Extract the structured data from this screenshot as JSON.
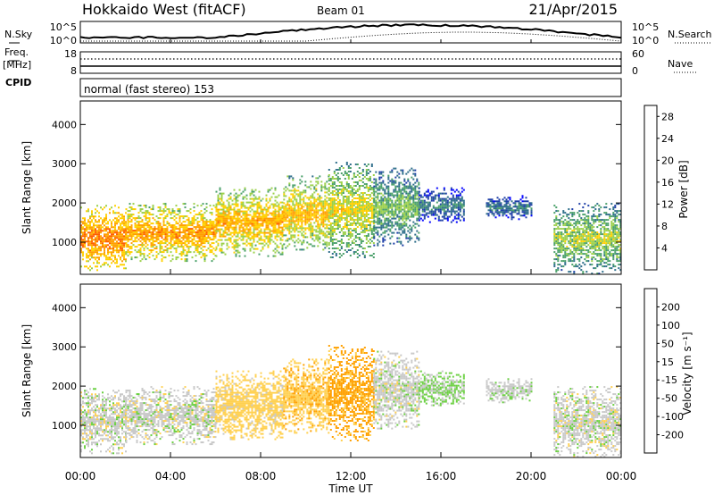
{
  "header": {
    "station": "Hokkaido West (fitACF)",
    "beam": "Beam 01",
    "date": "21/Apr/2015"
  },
  "noise_panel": {
    "left_label": "N.Sky",
    "right_label": "N.Search",
    "ticks_left": [
      "10^5",
      "10^0"
    ],
    "ticks_right": [
      "10^5",
      "10^0"
    ]
  },
  "freq_panel": {
    "left_label_1": "Freq.",
    "left_label_2": "[MHz]",
    "right_label": "Nave",
    "ticks_left": [
      "18",
      "8"
    ],
    "ticks_right": [
      "60",
      "0"
    ],
    "cpid_label": "CPID",
    "cpid_text": "normal (fast stereo) 153"
  },
  "colors": {
    "power_scale": [
      "#0000ff",
      "#1f3fa8",
      "#2e6e8a",
      "#4aa06a",
      "#9bd04a",
      "#ffd000",
      "#ffa000",
      "#ff6000",
      "#ff0000"
    ],
    "velocity_scale": [
      "#ff0000",
      "#ff5000",
      "#ffa000",
      "#ffd050",
      "#c8c8c8",
      "#6ad040",
      "#3a9a5a",
      "#2a5aa8",
      "#0000ff"
    ],
    "velocity_main": "#c8c8c8",
    "velocity_recede": "#ffa000"
  },
  "chart_data": [
    {
      "type": "heatmap",
      "name": "power",
      "ylabel": "Slant Range [km]",
      "xlabel": "Time UT",
      "x_ticks": [
        "00:00",
        "04:00",
        "08:00",
        "12:00",
        "16:00",
        "20:00",
        "00:00"
      ],
      "y_ticks": [
        1000,
        2000,
        3000,
        4000
      ],
      "ylim": [
        180,
        4600
      ],
      "xlim_hours": [
        0,
        24
      ],
      "colorbar": {
        "label": "Power [dB]",
        "ticks": [
          4,
          8,
          12,
          16,
          20,
          24,
          28
        ],
        "range": [
          0,
          30
        ]
      },
      "regions": [
        {
          "t_start": 0,
          "t_end": 2,
          "range_min": 300,
          "range_max": 1950,
          "value": 20
        },
        {
          "t_start": 2,
          "t_end": 6,
          "range_min": 500,
          "range_max": 2000,
          "value": 18
        },
        {
          "t_start": 6,
          "t_end": 9,
          "range_min": 650,
          "range_max": 2400,
          "value": 17
        },
        {
          "t_start": 9,
          "t_end": 11,
          "range_min": 800,
          "range_max": 2700,
          "value": 16
        },
        {
          "t_start": 11,
          "t_end": 13,
          "range_min": 600,
          "range_max": 3050,
          "value": 14
        },
        {
          "t_start": 13,
          "t_end": 15,
          "range_min": 900,
          "range_max": 2900,
          "value": 10
        },
        {
          "t_start": 15,
          "t_end": 17,
          "range_min": 1500,
          "range_max": 2400,
          "value": 6
        },
        {
          "t_start": 18,
          "t_end": 20,
          "range_min": 1600,
          "range_max": 2200,
          "value": 6
        },
        {
          "t_start": 21,
          "t_end": 24,
          "range_min": 200,
          "range_max": 2000,
          "value": 12
        }
      ]
    },
    {
      "type": "heatmap",
      "name": "velocity",
      "ylabel": "Slant Range [km]",
      "xlabel": "Time UT",
      "x_ticks": [
        "00:00",
        "04:00",
        "08:00",
        "12:00",
        "16:00",
        "20:00",
        "00:00"
      ],
      "y_ticks": [
        1000,
        2000,
        3000,
        4000
      ],
      "ylim": [
        180,
        4600
      ],
      "xlim_hours": [
        0,
        24
      ],
      "colorbar": {
        "label": "Velocity [m s⁻¹]",
        "ticks": [
          -200,
          -100,
          -50,
          -15,
          15,
          50,
          100,
          200
        ],
        "range": [
          -250,
          250
        ]
      },
      "regions": [
        {
          "t_start": 0,
          "t_end": 2,
          "range_min": 300,
          "range_max": 1950,
          "value": 0
        },
        {
          "t_start": 2,
          "t_end": 6,
          "range_min": 500,
          "range_max": 2000,
          "value": 0
        },
        {
          "t_start": 6,
          "t_end": 9,
          "range_min": 650,
          "range_max": 2400,
          "value": -30
        },
        {
          "t_start": 9,
          "t_end": 11,
          "range_min": 800,
          "range_max": 2700,
          "value": -40
        },
        {
          "t_start": 11,
          "t_end": 13,
          "range_min": 600,
          "range_max": 3050,
          "value": -60
        },
        {
          "t_start": 13,
          "t_end": 15,
          "range_min": 900,
          "range_max": 2900,
          "value": 0
        },
        {
          "t_start": 15,
          "t_end": 17,
          "range_min": 1500,
          "range_max": 2400,
          "value": 20
        },
        {
          "t_start": 18,
          "t_end": 20,
          "range_min": 1600,
          "range_max": 2200,
          "value": 5
        },
        {
          "t_start": 21,
          "t_end": 24,
          "range_min": 200,
          "range_max": 2000,
          "value": 0
        }
      ]
    }
  ]
}
